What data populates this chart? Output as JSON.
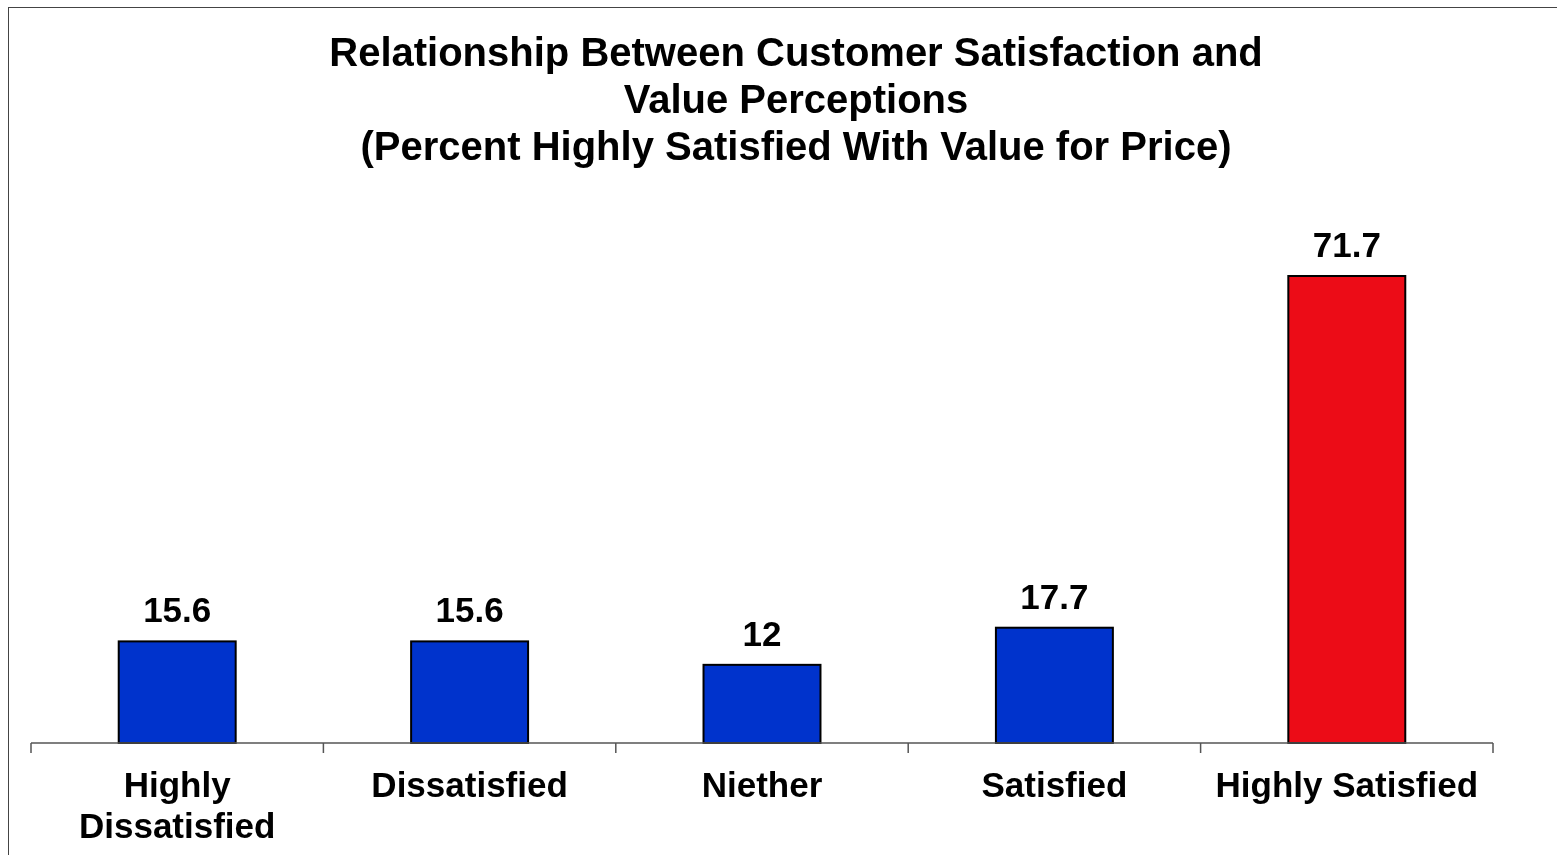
{
  "chart_data": {
    "type": "bar",
    "title": "Relationship Between Customer Satisfaction and\nValue Perceptions",
    "subtitle": "(Percent Highly Satisfied With Value for Price)",
    "categories": [
      "Highly Dissatisfied",
      "Dissatisfied",
      "Niether",
      "Satisfied",
      "Highly Satisfied"
    ],
    "values": [
      15.6,
      15.6,
      12,
      17.7,
      71.7
    ],
    "colors": [
      "#0033cc",
      "#0033cc",
      "#0033cc",
      "#0033cc",
      "#ec0c17"
    ],
    "data_labels": true
  }
}
